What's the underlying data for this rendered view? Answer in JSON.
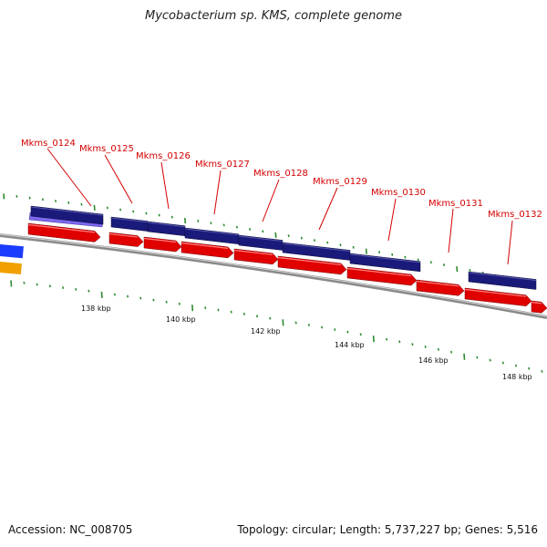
{
  "title": "Mycobacterium sp. KMS, complete genome",
  "footer": {
    "accession": "Accession: NC_008705",
    "summary": "Topology: circular; Length: 5,737,227 bp; Genes: 5,516"
  },
  "colors": {
    "gene_label": "#d40000",
    "cds_reverse": "#1a1a7a",
    "cds_forward": "#e00000",
    "backbone": "#8a8a8a",
    "tick": "#2e8b2e",
    "misc_feature": "#6a5acd",
    "left_blue": "#1a3cff",
    "left_orange": "#f0a000"
  },
  "genes": [
    {
      "name": "Mkms_0124"
    },
    {
      "name": "Mkms_0125"
    },
    {
      "name": "Mkms_0126"
    },
    {
      "name": "Mkms_0127"
    },
    {
      "name": "Mkms_0128"
    },
    {
      "name": "Mkms_0129"
    },
    {
      "name": "Mkms_0130"
    },
    {
      "name": "Mkms_0131"
    },
    {
      "name": "Mkms_0132"
    }
  ],
  "kbp_labels": [
    "138 kbp",
    "140 kbp",
    "142 kbp",
    "144 kbp",
    "146 kbp",
    "148 kbp"
  ]
}
